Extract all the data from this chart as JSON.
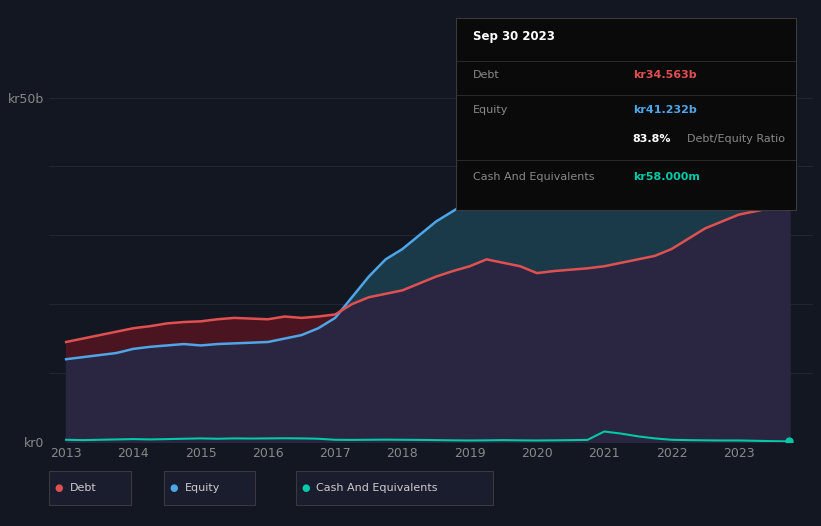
{
  "background_color": "#131722",
  "plot_bg_color": "#131722",
  "title_box": {
    "date": "Sep 30 2023",
    "debt_label": "Debt",
    "debt_value": "kr34.563b",
    "equity_label": "Equity",
    "equity_value": "kr41.232b",
    "ratio_bold": "83.8%",
    "ratio_rest": " Debt/Equity Ratio",
    "cash_label": "Cash And Equivalents",
    "cash_value": "kr58.000m",
    "bg_color": "#0a0a0a",
    "border_color": "#3a3a3a",
    "debt_color": "#e05050",
    "equity_color": "#4da6e8",
    "cash_color": "#00c9a7",
    "ratio_bold_color": "#ffffff",
    "ratio_normal_color": "#888888",
    "label_color": "#888888",
    "title_color": "#ffffff"
  },
  "years": [
    2013.0,
    2013.25,
    2013.5,
    2013.75,
    2014.0,
    2014.25,
    2014.5,
    2014.75,
    2015.0,
    2015.25,
    2015.5,
    2015.75,
    2016.0,
    2016.25,
    2016.5,
    2016.75,
    2017.0,
    2017.25,
    2017.5,
    2017.75,
    2018.0,
    2018.25,
    2018.5,
    2018.75,
    2019.0,
    2019.25,
    2019.5,
    2019.75,
    2020.0,
    2020.25,
    2020.5,
    2020.75,
    2021.0,
    2021.25,
    2021.5,
    2021.75,
    2022.0,
    2022.25,
    2022.5,
    2022.75,
    2023.0,
    2023.25,
    2023.5,
    2023.75
  ],
  "debt": [
    14.5,
    15.0,
    15.5,
    16.0,
    16.5,
    16.8,
    17.2,
    17.4,
    17.5,
    17.8,
    18.0,
    17.9,
    17.8,
    18.2,
    18.0,
    18.2,
    18.5,
    20.0,
    21.0,
    21.5,
    22.0,
    23.0,
    24.0,
    24.8,
    25.5,
    26.5,
    26.0,
    25.5,
    24.5,
    24.8,
    25.0,
    25.2,
    25.5,
    26.0,
    26.5,
    27.0,
    28.0,
    29.5,
    31.0,
    32.0,
    33.0,
    33.5,
    34.0,
    34.563
  ],
  "equity": [
    12.0,
    12.3,
    12.6,
    12.9,
    13.5,
    13.8,
    14.0,
    14.2,
    14.0,
    14.2,
    14.3,
    14.4,
    14.5,
    15.0,
    15.5,
    16.5,
    18.0,
    21.0,
    24.0,
    26.5,
    28.0,
    30.0,
    32.0,
    33.5,
    35.0,
    36.5,
    37.0,
    36.8,
    36.5,
    36.8,
    37.0,
    37.2,
    37.5,
    38.5,
    39.5,
    41.5,
    44.0,
    46.5,
    48.5,
    49.5,
    48.0,
    46.0,
    43.5,
    41.232
  ],
  "cash": [
    0.3,
    0.25,
    0.3,
    0.35,
    0.4,
    0.35,
    0.4,
    0.45,
    0.5,
    0.45,
    0.5,
    0.48,
    0.5,
    0.52,
    0.5,
    0.45,
    0.3,
    0.28,
    0.3,
    0.32,
    0.3,
    0.28,
    0.25,
    0.22,
    0.2,
    0.22,
    0.25,
    0.22,
    0.2,
    0.22,
    0.25,
    0.28,
    1.5,
    1.2,
    0.8,
    0.5,
    0.3,
    0.25,
    0.22,
    0.2,
    0.2,
    0.15,
    0.1,
    0.058
  ],
  "debt_color": "#e05050",
  "equity_color": "#4da6e8",
  "cash_color": "#00c9a7",
  "grid_color": "#2a2e39",
  "text_color": "#888888",
  "ylim": [
    0,
    55
  ],
  "ytick_positions": [
    0,
    50
  ],
  "ytick_labels": [
    "kr0",
    "kr50b"
  ],
  "grid_lines": [
    0,
    10,
    20,
    30,
    40,
    50
  ],
  "xticks": [
    2013,
    2014,
    2015,
    2016,
    2017,
    2018,
    2019,
    2020,
    2021,
    2022,
    2023
  ],
  "legend_items": [
    {
      "label": "Debt",
      "color": "#e05050"
    },
    {
      "label": "Equity",
      "color": "#4da6e8"
    },
    {
      "label": "Cash And Equivalents",
      "color": "#00c9a7"
    }
  ]
}
